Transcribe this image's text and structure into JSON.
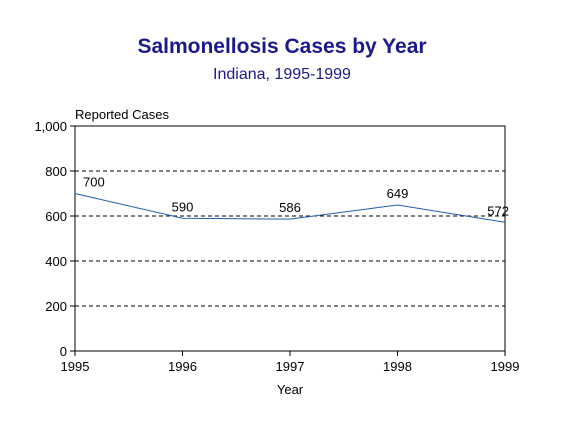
{
  "chart_data": {
    "type": "line",
    "title": "Salmonellosis Cases by Year",
    "subtitle": "Indiana, 1995-1999",
    "ylabel": "Reported Cases",
    "xlabel": "Year",
    "x": [
      "1995",
      "1996",
      "1997",
      "1998",
      "1999"
    ],
    "series": [
      {
        "values": [
          700,
          590,
          586,
          649,
          572
        ]
      }
    ],
    "data_labels": [
      "700",
      "590",
      "586",
      "649",
      "572"
    ],
    "ylim": [
      0,
      1000
    ],
    "yticks": [
      0,
      200,
      400,
      600,
      800,
      1000
    ],
    "ytick_labels": [
      "0",
      "200",
      "400",
      "600",
      "800",
      "1,000"
    ],
    "grid": "horizontal dashed",
    "line_color": "#1f5fa8",
    "title_color": "#1a1a8c"
  }
}
